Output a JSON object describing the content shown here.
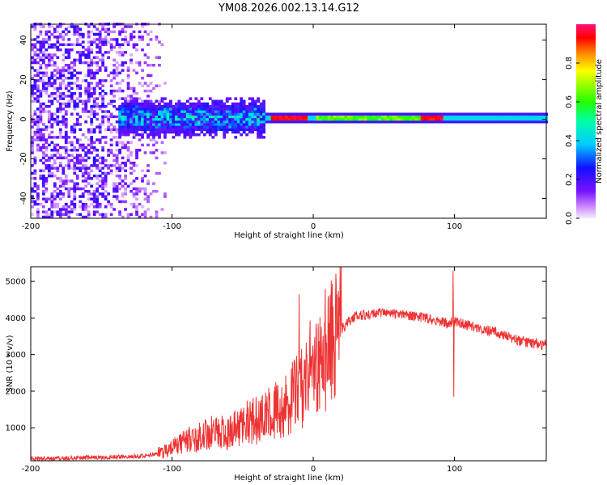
{
  "title": "YM08.2026.002.13.14.G12",
  "chart_data": [
    {
      "type": "heatmap",
      "name": "spectrogram",
      "xlabel": "Height of straight line (km)",
      "ylabel": "Frequency (Hz)",
      "xlim": [
        -200,
        165
      ],
      "ylim": [
        -50,
        48
      ],
      "xticks": [
        -200,
        -100,
        0,
        100
      ],
      "yticks": [
        -40,
        -20,
        0,
        20,
        40
      ],
      "colorbar": {
        "label": "Normalized spectral amplitude",
        "range": [
          0,
          1
        ],
        "ticks": [
          0.0,
          0.2,
          0.4,
          0.6,
          0.8
        ],
        "tick_labels": [
          "0.0",
          "0.2",
          "0.4",
          "0.6",
          "0.8"
        ]
      },
      "features": {
        "noise_region_x": [
          -200,
          -110
        ],
        "signal_band_center_hz": 0,
        "signal_band_halfwidth_hz": 3,
        "broadened_region_x": [
          -140,
          -35
        ],
        "peak_amplitude_regions_x": [
          [
            -30,
            -5
          ],
          [
            75,
            90
          ]
        ]
      }
    },
    {
      "type": "line",
      "name": "snr",
      "xlabel": "Height of straight line (km)",
      "ylabel": "SNR (10 * v/v)",
      "xlim": [
        -200,
        165
      ],
      "ylim": [
        100,
        5400
      ],
      "xticks": [
        -200,
        -100,
        0,
        100
      ],
      "yticks": [
        1000,
        2000,
        3000,
        4000,
        5000
      ],
      "color": "#ee3333",
      "series": [
        {
          "name": "SNR",
          "x": [
            -200,
            -180,
            -160,
            -140,
            -120,
            -110,
            -100,
            -90,
            -80,
            -70,
            -60,
            -50,
            -40,
            -30,
            -20,
            -10,
            0,
            10,
            20,
            30,
            40,
            50,
            60,
            70,
            80,
            90,
            95,
            100,
            105,
            110,
            120,
            130,
            140,
            150,
            165
          ],
          "values": [
            150,
            170,
            180,
            200,
            230,
            300,
            450,
            650,
            750,
            900,
            850,
            1100,
            1200,
            1400,
            1600,
            2000,
            2700,
            3200,
            3700,
            4050,
            4100,
            4150,
            4100,
            4050,
            4000,
            3900,
            3850,
            3900,
            3850,
            3800,
            3700,
            3600,
            3450,
            3350,
            3250
          ],
          "spikes": [
            {
              "x": -10,
              "value": 4650
            },
            {
              "x": 99,
              "value": 5300
            },
            {
              "x": 99.5,
              "value": 1850
            }
          ]
        }
      ]
    }
  ]
}
